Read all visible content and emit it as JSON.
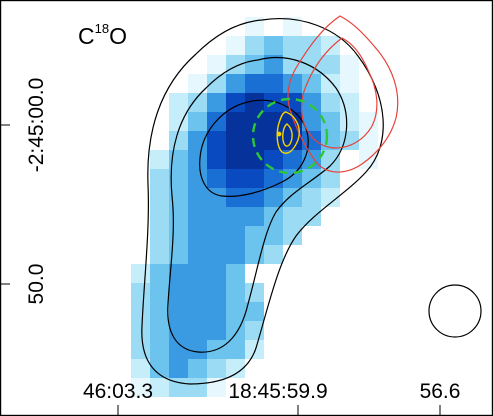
{
  "title": {
    "molecule": "C",
    "isotope": "18",
    "suffix": "O"
  },
  "x_ticks": [
    "46:03.3",
    "18:45:59.9",
    "56.6"
  ],
  "y_ticks": [
    "-2:45:00.0",
    "50.0"
  ],
  "colors": {
    "colormap": [
      "#e6f8fd",
      "#c5eefa",
      "#9bdcf4",
      "#6cc4ee",
      "#3a9be3",
      "#1a6fd4",
      "#0a4ac0",
      "#06329c",
      "#041f78"
    ],
    "outer_contours": "#000000",
    "red_contours": "#e8413a",
    "green_circle": "#2cc934",
    "yellow_source": "#f1d400",
    "beam": "#000000"
  },
  "chart_data": {
    "type": "heatmap",
    "title": "C18O",
    "x_tick_labels": [
      "46:03.3",
      "18:45:59.9",
      "56.6"
    ],
    "y_tick_labels": [
      "-2:45:00.0",
      "50.0"
    ],
    "grid": [
      "....................",
      "..........1.1.......",
      ".........134332.....",
      "........13453331....",
      ".......135665421....",
      "......2357877532....",
      "......24688885421...",
      "......35788886431...",
      ".....2457887653.1...",
      ".....3456776543.....",
      ".....3455665432.....",
      ".....345555433......",
      ".....34555443.......",
      ".....3455543........",
      "....245554..........",
      "....3455543.........",
      "....3455544.........",
      "....3455543.........",
      "....3455442.........",
      "....245432..........",
      "....12331...........",
      "...................."
    ],
    "beam": "circle, lower-right"
  }
}
